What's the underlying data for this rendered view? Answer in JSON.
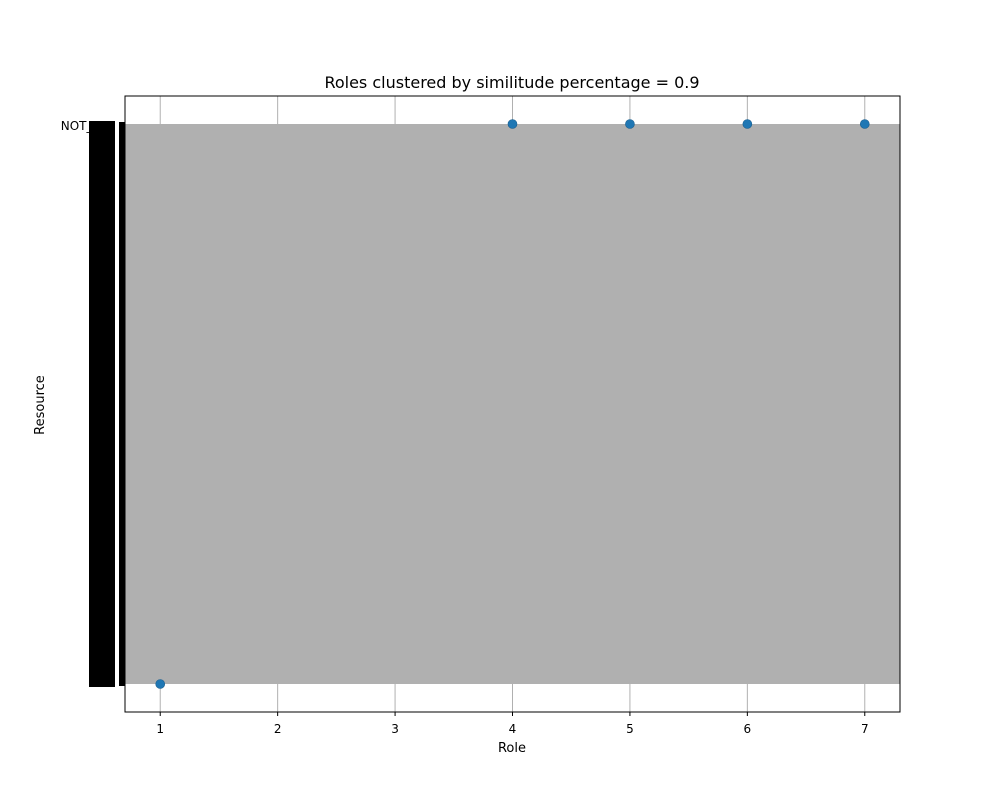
{
  "chart_data": {
    "type": "scatter",
    "title": "Roles clustered by similitude percentage = 0.9",
    "xlabel": "Role",
    "ylabel": "Resource",
    "xlim": [
      0.7,
      7.3
    ],
    "x_ticks": [
      1,
      2,
      3,
      4,
      5,
      6,
      7
    ],
    "y_top_tick_label": "NOT_SET",
    "y_tick_count": 190,
    "grid": true,
    "series_color": "#1f77b4",
    "band_color": "#b0b0b0",
    "points": [
      {
        "x": 1,
        "y": "bottom"
      },
      {
        "x": 4,
        "y": "NOT_SET"
      },
      {
        "x": 5,
        "y": "NOT_SET"
      },
      {
        "x": 6,
        "y": "NOT_SET"
      },
      {
        "x": 7,
        "y": "NOT_SET"
      }
    ]
  }
}
